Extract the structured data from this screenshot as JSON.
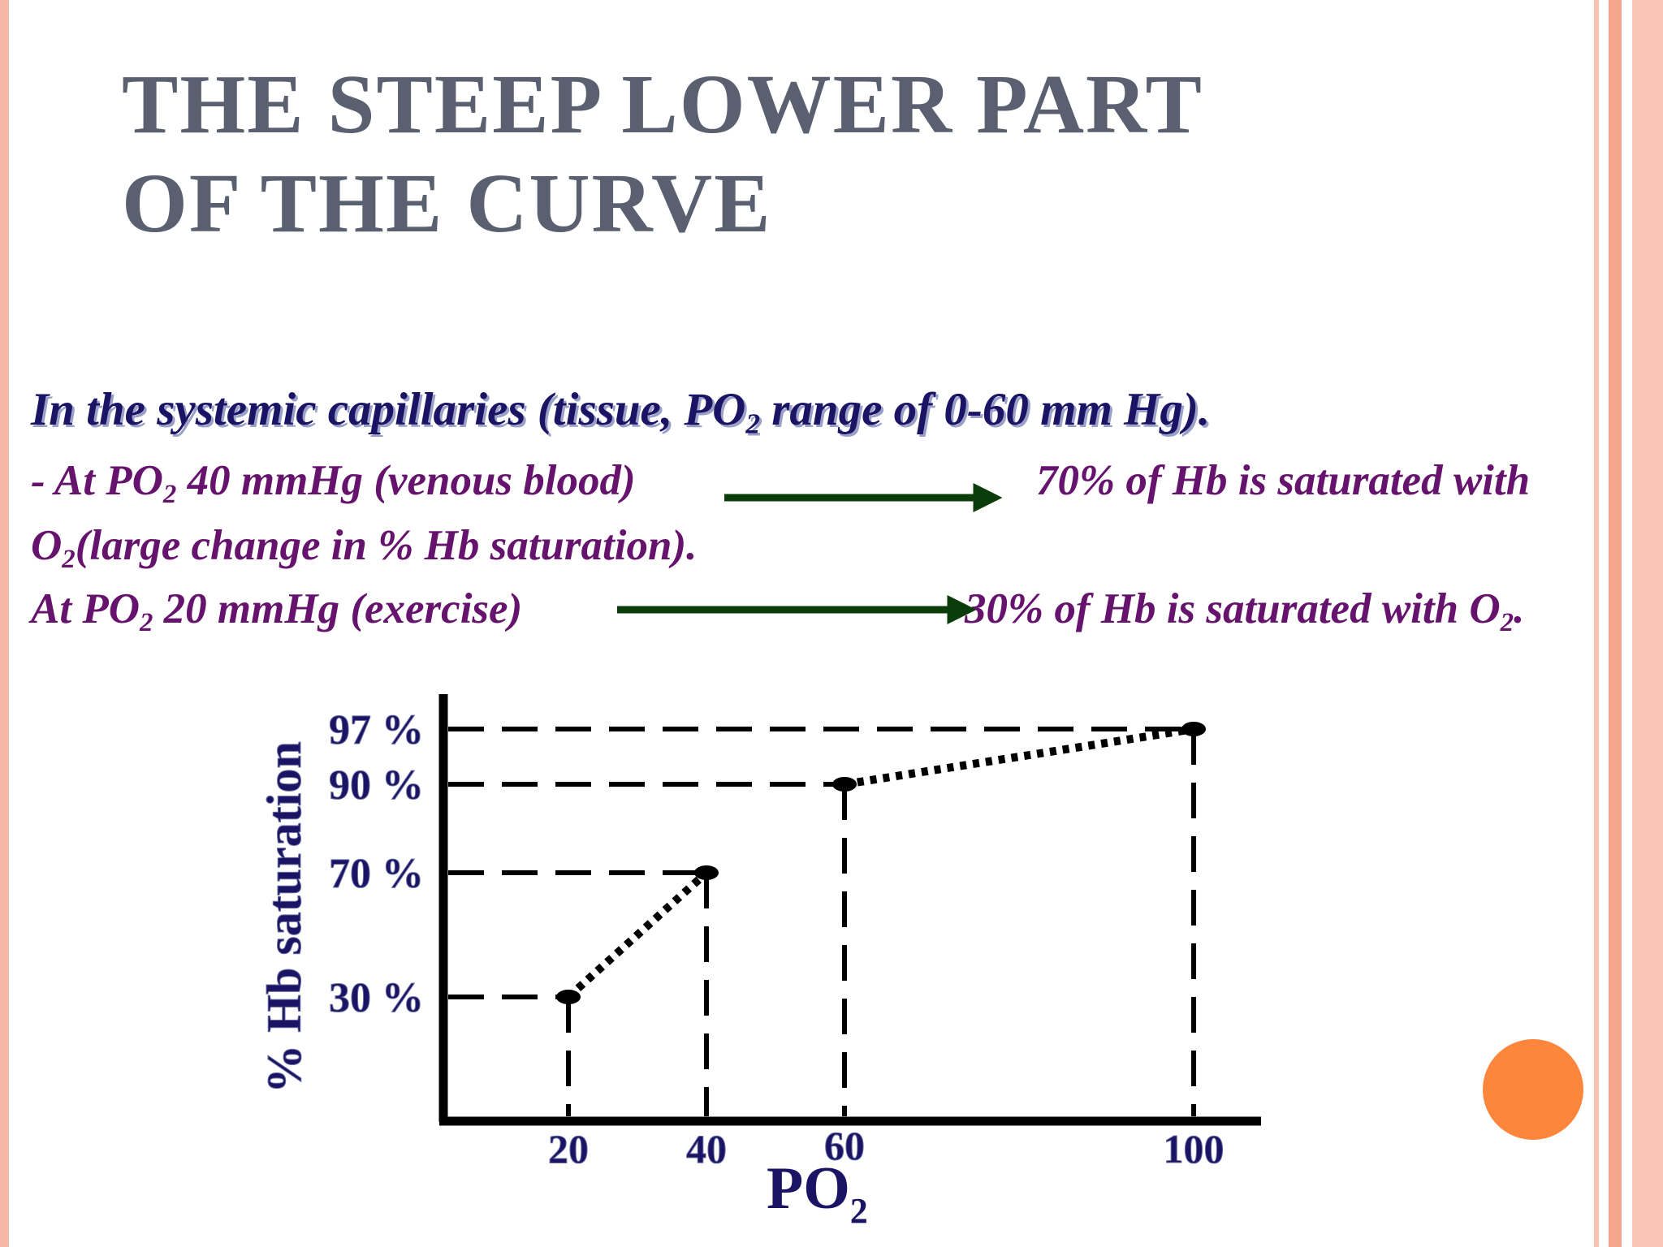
{
  "slide": {
    "title_line1": "THE STEEP LOWER PART",
    "title_line2": "OF THE CURVE",
    "heading": {
      "pre": "In the systemic capillaries (tissue, PO",
      "sub": "2",
      "post": " range of 0-60 mm Hg)."
    },
    "line1": {
      "pre": "- At PO",
      "sub": "2",
      "post": " 40 mmHg (venous blood)",
      "result": "70% of Hb is saturated with"
    },
    "line2": {
      "pre": "O",
      "sub": "2",
      "post": "(large change in % Hb saturation)."
    },
    "line3": {
      "pre": "At PO",
      "sub": "2",
      "post": " 20 mmHg (exercise)",
      "result_pre": "30% of Hb is saturated with O",
      "result_sub": "2",
      "result_post": "."
    }
  },
  "colors": {
    "title": "#5a6070",
    "heading": "#1b1464",
    "body_text": "#66136e",
    "arrow": "#0b3d0b",
    "axis_labels": "#1b1464",
    "accent_circle": "#fd863d",
    "frame": "#f6b8a6"
  },
  "chart_data": {
    "type": "line",
    "xlabel": "PO",
    "xlabel_sub": "2",
    "ylabel": "% Hb saturation",
    "x_ticks": [
      "20",
      "40",
      "60",
      "100"
    ],
    "y_ticks": [
      "30 %",
      "70 %",
      "90 %",
      "97 %"
    ],
    "points": [
      {
        "x": 20,
        "y": 30
      },
      {
        "x": 40,
        "y": 70
      },
      {
        "x": 60,
        "y": 90
      },
      {
        "x": 100,
        "y": 97
      }
    ],
    "dotted_segments": [
      [
        0,
        1
      ],
      [
        2,
        3
      ]
    ],
    "dashed_guides": true,
    "grid": false
  }
}
